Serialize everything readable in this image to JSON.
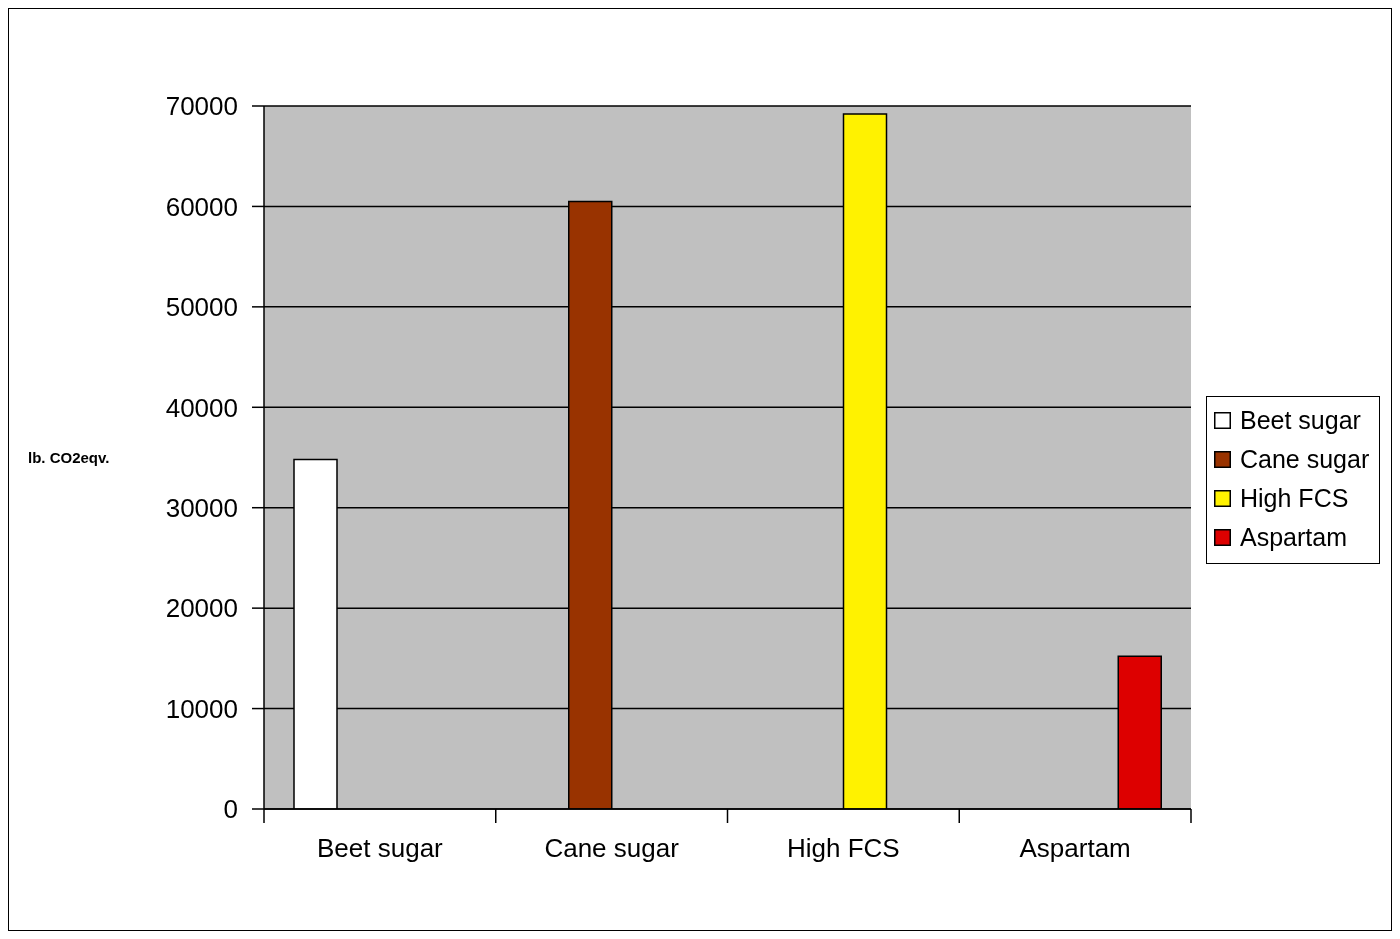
{
  "chart_data": {
    "type": "bar",
    "ylabel": "lb. CO2eqv.",
    "categories": [
      "Beet sugar",
      "Cane sugar",
      "High FCS",
      "Aspartam"
    ],
    "series": [
      {
        "name": "Beet sugar",
        "color": "#ffffff",
        "values": [
          34800,
          null,
          null,
          null
        ]
      },
      {
        "name": "Cane sugar",
        "color": "#993300",
        "values": [
          null,
          60500,
          null,
          null
        ]
      },
      {
        "name": "High FCS",
        "color": "#fff200",
        "values": [
          null,
          null,
          69200,
          null
        ]
      },
      {
        "name": "Aspartam",
        "color": "#dd0000",
        "values": [
          null,
          null,
          null,
          15200
        ]
      }
    ],
    "ylim": [
      0,
      70000
    ],
    "yticks": [
      0,
      10000,
      20000,
      30000,
      40000,
      50000,
      60000,
      70000
    ],
    "grid": "y",
    "legend": "right"
  }
}
